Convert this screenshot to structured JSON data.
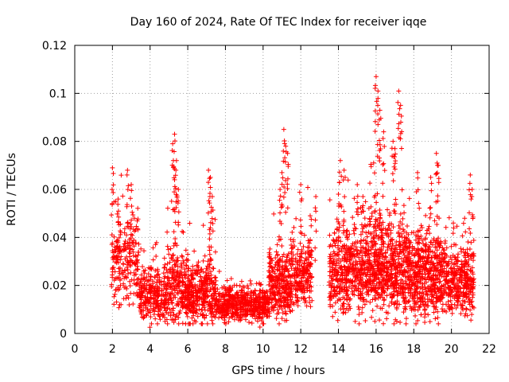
{
  "chart_data": {
    "type": "scatter",
    "title": "Day 160 of 2024, Rate Of TEC Index for receiver iqqe",
    "xlabel": "GPS time / hours",
    "ylabel": "ROTI / TECUs",
    "xlim": [
      0,
      22
    ],
    "ylim": [
      0,
      0.12
    ],
    "x_ticks": [
      0,
      2,
      4,
      6,
      8,
      10,
      12,
      14,
      16,
      18,
      20,
      22
    ],
    "x_tick_labels": [
      "0",
      "2",
      "4",
      "6",
      "8",
      "10",
      "12",
      "14",
      "16",
      "18",
      "20",
      "22"
    ],
    "y_ticks": [
      0,
      0.02,
      0.04,
      0.06,
      0.08,
      0.1,
      0.12
    ],
    "y_tick_labels": [
      "0",
      "0.02",
      "0.04",
      "0.06",
      "0.08",
      "0.1",
      "0.12"
    ],
    "grid": true,
    "marker": "+",
    "marker_color": "#ff0000",
    "series": [
      {
        "name": "ROTI",
        "segments": [
          {
            "t_start": 1.95,
            "t_end": 3.4,
            "base": 0.03,
            "spread": 0.014,
            "count": 220,
            "peaks": [
              [
                2.0,
                0.069
              ],
              [
                2.3,
                0.056
              ],
              [
                2.8,
                0.068
              ],
              [
                3.0,
                0.062
              ]
            ]
          },
          {
            "t_start": 3.4,
            "t_end": 4.9,
            "base": 0.016,
            "spread": 0.008,
            "count": 260,
            "peaks": [
              [
                4.4,
                0.026
              ],
              [
                4.0,
                0.027
              ]
            ]
          },
          {
            "t_start": 4.9,
            "t_end": 5.6,
            "base": 0.02,
            "spread": 0.012,
            "count": 140,
            "peaks": [
              [
                5.3,
                0.083
              ],
              [
                5.2,
                0.079
              ],
              [
                5.4,
                0.072
              ],
              [
                5.3,
                0.064
              ],
              [
                5.5,
                0.06
              ]
            ]
          },
          {
            "t_start": 5.6,
            "t_end": 7.5,
            "base": 0.017,
            "spread": 0.009,
            "count": 420,
            "peaks": [
              [
                6.0,
                0.033
              ],
              [
                7.1,
                0.068
              ],
              [
                7.2,
                0.065
              ],
              [
                7.3,
                0.057
              ],
              [
                7.2,
                0.044
              ]
            ]
          },
          {
            "t_start": 7.5,
            "t_end": 10.3,
            "base": 0.012,
            "spread": 0.005,
            "count": 520,
            "peaks": [
              [
                8.6,
                0.02
              ],
              [
                9.8,
                0.021
              ]
            ]
          },
          {
            "t_start": 10.3,
            "t_end": 11.5,
            "base": 0.02,
            "spread": 0.011,
            "count": 300,
            "peaks": [
              [
                11.1,
                0.085
              ],
              [
                11.2,
                0.078
              ],
              [
                11.3,
                0.075
              ],
              [
                11.0,
                0.067
              ],
              [
                10.9,
                0.06
              ]
            ]
          },
          {
            "t_start": 11.5,
            "t_end": 12.6,
            "base": 0.024,
            "spread": 0.01,
            "count": 220,
            "peaks": [
              [
                12.0,
                0.062
              ],
              [
                12.5,
                0.049
              ],
              [
                12.8,
                0.057
              ]
            ]
          },
          {
            "t_start": 13.5,
            "t_end": 15.6,
            "base": 0.026,
            "spread": 0.013,
            "count": 480,
            "peaks": [
              [
                14.1,
                0.072
              ],
              [
                14.3,
                0.068
              ],
              [
                14.0,
                0.058
              ],
              [
                15.0,
                0.062
              ],
              [
                15.3,
                0.057
              ]
            ]
          },
          {
            "t_start": 15.6,
            "t_end": 17.8,
            "base": 0.028,
            "spread": 0.015,
            "count": 640,
            "peaks": [
              [
                16.0,
                0.107
              ],
              [
                16.1,
                0.101
              ],
              [
                16.2,
                0.093
              ],
              [
                17.2,
                0.101
              ],
              [
                17.3,
                0.095
              ],
              [
                16.4,
                0.084
              ],
              [
                16.9,
                0.08
              ],
              [
                17.0,
                0.077
              ]
            ]
          },
          {
            "t_start": 17.8,
            "t_end": 19.5,
            "base": 0.024,
            "spread": 0.013,
            "count": 460,
            "peaks": [
              [
                18.2,
                0.067
              ],
              [
                18.9,
                0.065
              ],
              [
                19.2,
                0.075
              ],
              [
                19.3,
                0.07
              ]
            ]
          },
          {
            "t_start": 19.5,
            "t_end": 21.2,
            "base": 0.022,
            "spread": 0.011,
            "count": 360,
            "peaks": [
              [
                20.1,
                0.046
              ],
              [
                21.0,
                0.066
              ],
              [
                21.1,
                0.06
              ],
              [
                20.7,
                0.048
              ]
            ]
          }
        ]
      }
    ]
  }
}
